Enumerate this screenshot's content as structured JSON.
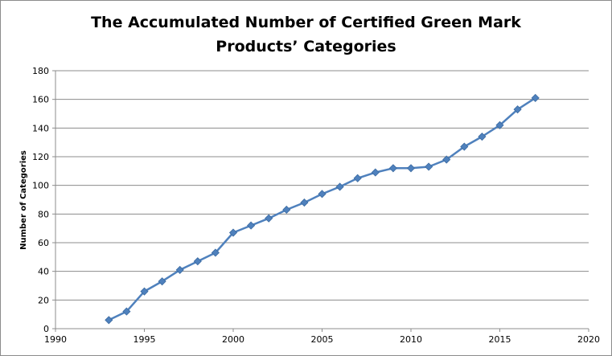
{
  "chart_data": {
    "type": "line",
    "title_line1": "The Accumulated Number of Certified Green Mark",
    "title_line2": "Products’ Categories",
    "xlabel": "",
    "ylabel": "Number of Categories",
    "xlim": [
      1990,
      2020
    ],
    "ylim": [
      0,
      180
    ],
    "x_ticks": [
      1990,
      1995,
      2000,
      2005,
      2010,
      2015,
      2020
    ],
    "y_ticks": [
      0,
      20,
      40,
      60,
      80,
      100,
      120,
      140,
      160,
      180
    ],
    "grid": true,
    "legend": "none",
    "series": [
      {
        "color": "#4f81bd",
        "x": [
          1993,
          1994,
          1995,
          1996,
          1997,
          1998,
          1999,
          2000,
          2001,
          2002,
          2003,
          2004,
          2005,
          2006,
          2007,
          2008,
          2009,
          2010,
          2011,
          2012,
          2013,
          2014,
          2015,
          2016,
          2017
        ],
        "y": [
          6,
          12,
          26,
          33,
          41,
          47,
          53,
          67,
          72,
          77,
          83,
          88,
          94,
          99,
          105,
          109,
          112,
          112,
          113,
          118,
          127,
          134,
          142,
          153,
          161
        ]
      }
    ]
  }
}
